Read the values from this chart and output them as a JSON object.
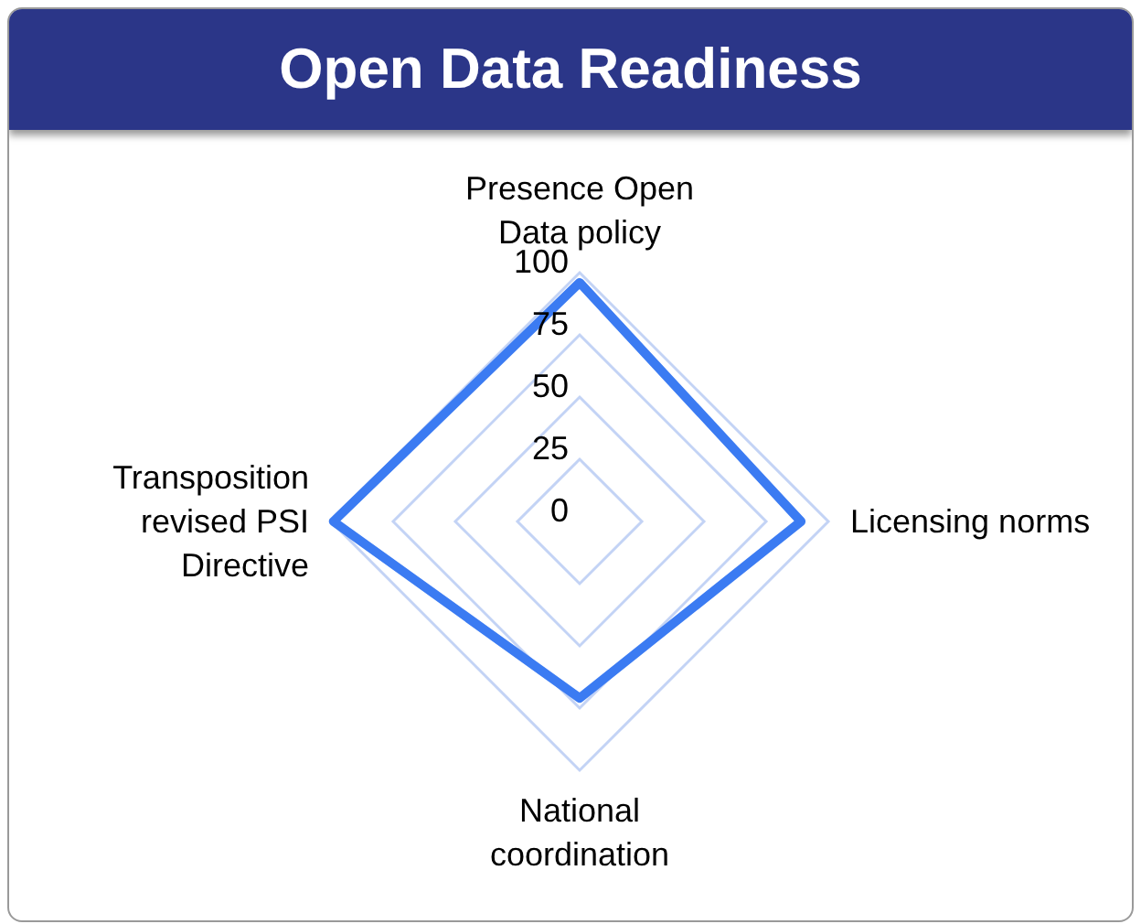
{
  "chart_data": {
    "type": "radar",
    "title": "Open Data Readiness",
    "categories": [
      "Presence Open Data policy",
      "Licensing norms",
      "National coordination",
      "Transposition revised PSI Directive"
    ],
    "series": [
      {
        "color": "#3b7bf2",
        "values": [
          96,
          89,
          71,
          99
        ]
      }
    ],
    "ylim": [
      0,
      100
    ],
    "yticks": [
      0,
      25,
      50,
      75,
      100
    ],
    "grid": true,
    "legend": false,
    "marker": "none"
  }
}
